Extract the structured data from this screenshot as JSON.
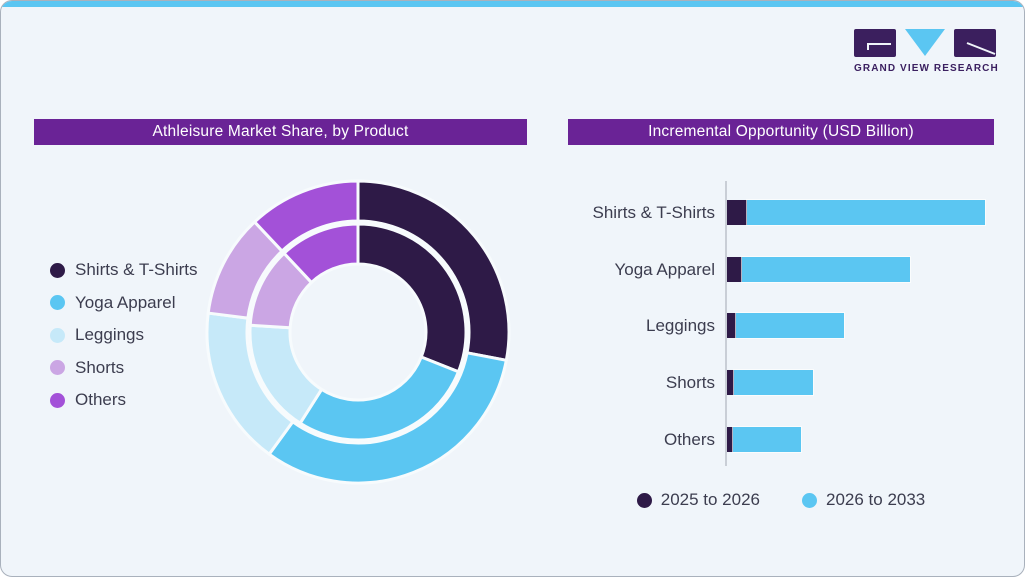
{
  "page": {
    "background": "#f0f5fa",
    "accent_bar_color": "#5bc6f2",
    "text_color": "#3c3d4f",
    "title_bar_color": "#6a2396"
  },
  "logo": {
    "text": "GRAND VIEW RESEARCH",
    "dark_color": "#3b1f5e",
    "blue_color": "#5bc6f2",
    "text_color": "#3b2060"
  },
  "left_panel": {
    "title": "Athleisure Market Share, by Product",
    "legend": [
      {
        "label": "Shirts & T-Shirts",
        "color": "#2e1a47"
      },
      {
        "label": "Yoga Apparel",
        "color": "#5bc6f2"
      },
      {
        "label": "Leggings",
        "color": "#c6e9f9"
      },
      {
        "label": "Shorts",
        "color": "#cba6e4"
      },
      {
        "label": "Others",
        "color": "#a351d8"
      }
    ]
  },
  "right_panel": {
    "title": "Incremental Opportunity (USD Billion)",
    "legend": [
      {
        "label": "2025 to 2026",
        "color": "#2e1a47"
      },
      {
        "label": "2026 to 2033",
        "color": "#5bc6f2"
      }
    ]
  },
  "chart_data": [
    {
      "type": "pie",
      "variant": "double-ring-donut",
      "title": "Athleisure Market Share, by Product",
      "categories": [
        "Shirts & T-Shirts",
        "Yoga Apparel",
        "Leggings",
        "Shorts",
        "Others"
      ],
      "colors": [
        "#2e1a47",
        "#5bc6f2",
        "#c6e9f9",
        "#cba6e4",
        "#a351d8"
      ],
      "series": [
        {
          "name": "inner ring",
          "values_pct": [
            31,
            28,
            17,
            12,
            12
          ]
        },
        {
          "name": "outer ring",
          "values_pct": [
            28,
            32,
            17,
            11,
            12
          ]
        }
      ],
      "start_angle_deg": 0,
      "direction": "clockwise",
      "legend_position": "left",
      "note": "No numeric labels shown in image; percentages estimated from arc angles"
    },
    {
      "type": "bar",
      "orientation": "horizontal",
      "stacked": true,
      "title": "Incremental Opportunity (USD Billion)",
      "categories": [
        "Shirts & T-Shirts",
        "Yoga Apparel",
        "Leggings",
        "Shorts",
        "Others"
      ],
      "series": [
        {
          "name": "2025 to 2026",
          "color": "#2e1a47",
          "values": [
            2.0,
            1.5,
            0.9,
            0.7,
            0.6
          ]
        },
        {
          "name": "2026 to 2033",
          "color": "#5bc6f2",
          "values": [
            23.8,
            16.8,
            10.8,
            7.9,
            6.8
          ]
        }
      ],
      "xlim": [
        0,
        26
      ],
      "grid": false,
      "axis_tick_labels_shown": false,
      "legend_position": "bottom",
      "note": "Axis is unlabeled; values estimated from bar lengths in relative units"
    }
  ]
}
